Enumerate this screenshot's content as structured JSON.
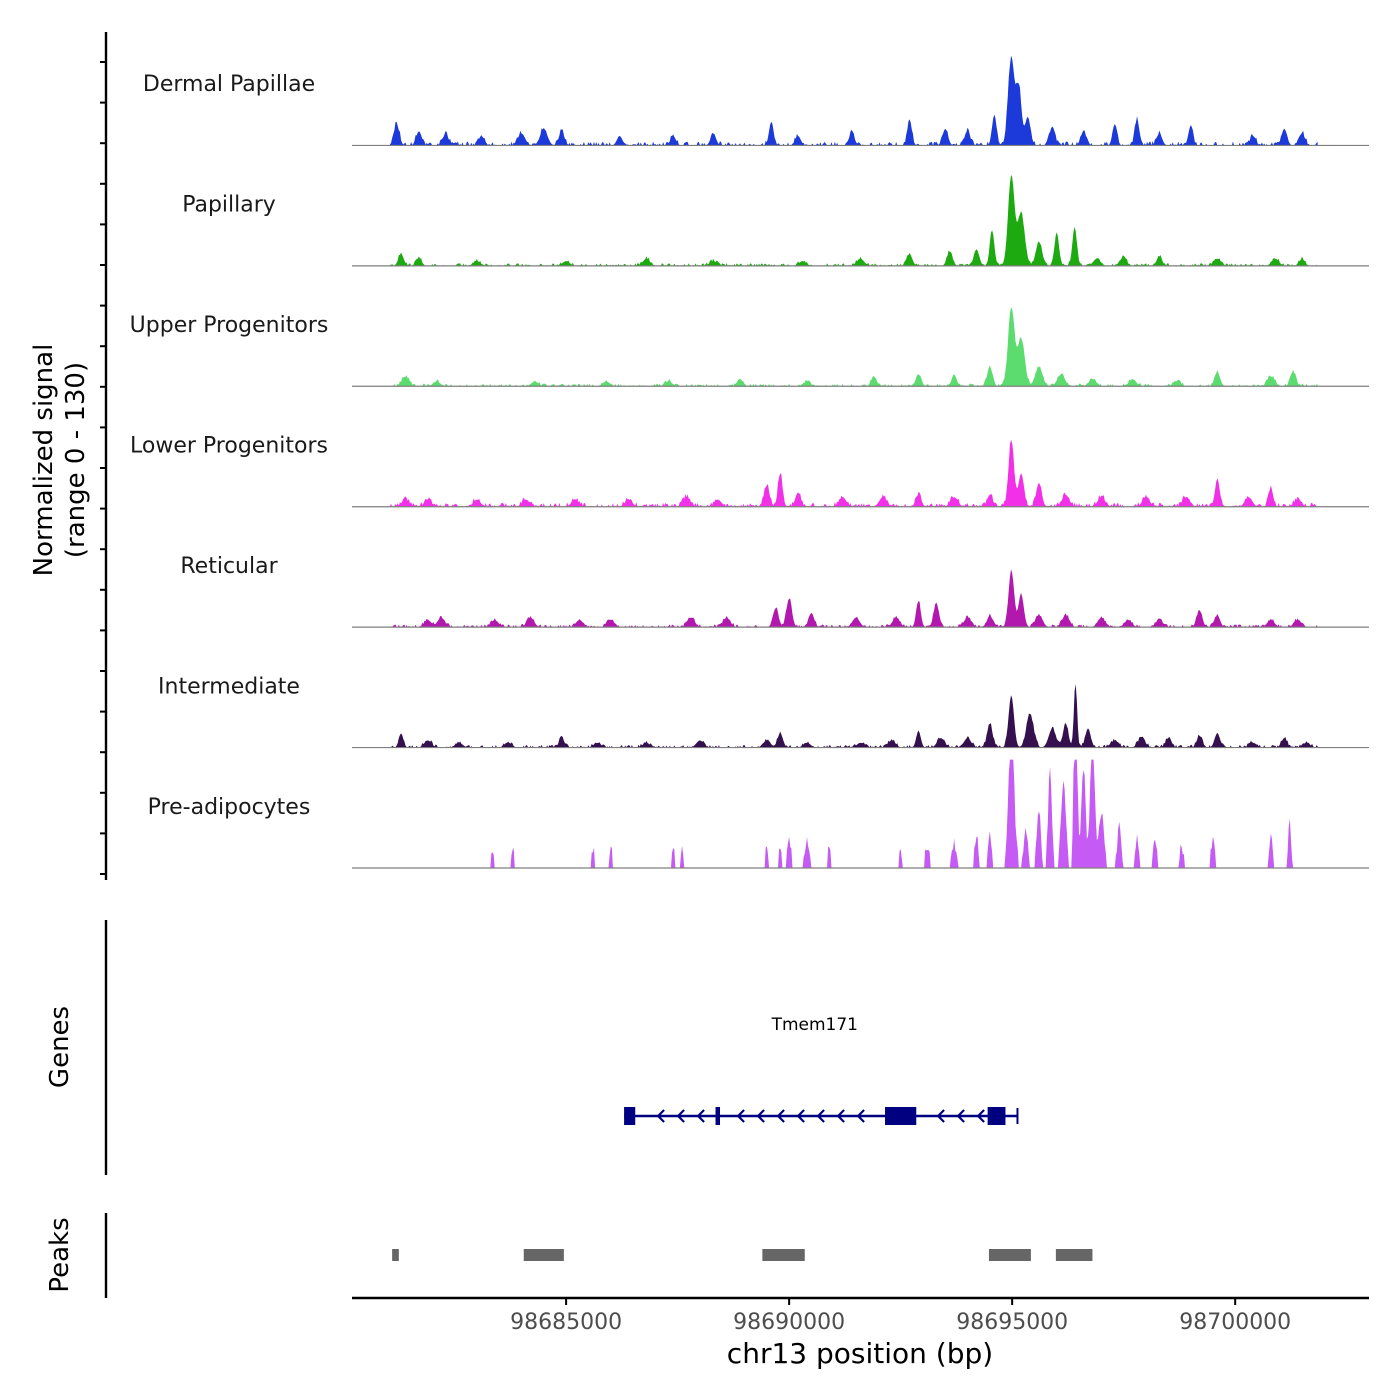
{
  "chart_data": {
    "type": "area",
    "title": "",
    "chromosome": "chr13",
    "xlabel": "chr13 position (bp)",
    "xlim": [
      98680200,
      98703000
    ],
    "xticks": [
      98685000,
      98690000,
      98695000,
      98700000
    ],
    "xtick_labels": [
      "98685000",
      "98690000",
      "98695000",
      "98700000"
    ],
    "signal_axis": {
      "label_line1": "Normalized signal",
      "label_line2": "(range 0 - 130)",
      "range": [
        0,
        130
      ]
    },
    "data_start": 98681050,
    "data_end": 98701850,
    "tracks": [
      {
        "name": "Dermal Papillae",
        "color": "#1b3ad9",
        "baseline_noise": 3,
        "peaks": [
          [
            98681200,
            9,
            60
          ],
          [
            98681700,
            6,
            60
          ],
          [
            98682300,
            5,
            60
          ],
          [
            98683100,
            4,
            60
          ],
          [
            98684000,
            5,
            80
          ],
          [
            98684500,
            7,
            80
          ],
          [
            98684900,
            6,
            60
          ],
          [
            98686200,
            4,
            60
          ],
          [
            98687400,
            4,
            60
          ],
          [
            98688300,
            5,
            60
          ],
          [
            98689600,
            10,
            50
          ],
          [
            98690200,
            4,
            60
          ],
          [
            98691400,
            5,
            60
          ],
          [
            98692700,
            11,
            50
          ],
          [
            98693500,
            7,
            60
          ],
          [
            98694000,
            6,
            60
          ],
          [
            98694600,
            13,
            50
          ],
          [
            98694980,
            37,
            70
          ],
          [
            98695150,
            24,
            60
          ],
          [
            98695350,
            12,
            60
          ],
          [
            98695900,
            8,
            60
          ],
          [
            98696600,
            6,
            60
          ],
          [
            98697300,
            9,
            50
          ],
          [
            98697800,
            11,
            50
          ],
          [
            98698300,
            5,
            60
          ],
          [
            98699000,
            8,
            50
          ],
          [
            98700400,
            4,
            60
          ],
          [
            98701100,
            7,
            60
          ],
          [
            98701500,
            5,
            60
          ]
        ]
      },
      {
        "name": "Papillary",
        "color": "#1caa10",
        "baseline_noise": 2,
        "peaks": [
          [
            98681300,
            5,
            60
          ],
          [
            98681700,
            3,
            60
          ],
          [
            98683000,
            2,
            80
          ],
          [
            98685000,
            2,
            80
          ],
          [
            98686800,
            3,
            80
          ],
          [
            98688300,
            2,
            80
          ],
          [
            98690300,
            2,
            80
          ],
          [
            98691600,
            3,
            80
          ],
          [
            98692700,
            5,
            60
          ],
          [
            98693600,
            6,
            60
          ],
          [
            98694200,
            7,
            60
          ],
          [
            98694550,
            15,
            50
          ],
          [
            98694980,
            38,
            70
          ],
          [
            98695200,
            22,
            80
          ],
          [
            98695600,
            10,
            70
          ],
          [
            98696000,
            14,
            50
          ],
          [
            98696400,
            16,
            50
          ],
          [
            98696900,
            3,
            80
          ],
          [
            98697500,
            4,
            60
          ],
          [
            98698300,
            4,
            60
          ],
          [
            98699600,
            3,
            80
          ],
          [
            98700900,
            3,
            80
          ],
          [
            98701500,
            3,
            60
          ]
        ]
      },
      {
        "name": "Upper Progenitors",
        "color": "#5cdc6e",
        "baseline_noise": 2,
        "peaks": [
          [
            98681400,
            4,
            80
          ],
          [
            98682100,
            2,
            80
          ],
          [
            98684300,
            2,
            80
          ],
          [
            98685900,
            2,
            80
          ],
          [
            98687300,
            2,
            80
          ],
          [
            98688900,
            3,
            60
          ],
          [
            98690400,
            2,
            80
          ],
          [
            98691900,
            4,
            60
          ],
          [
            98692900,
            5,
            60
          ],
          [
            98693700,
            4,
            60
          ],
          [
            98694500,
            8,
            60
          ],
          [
            98694980,
            33,
            70
          ],
          [
            98695200,
            20,
            80
          ],
          [
            98695600,
            8,
            80
          ],
          [
            98696100,
            5,
            80
          ],
          [
            98696800,
            3,
            80
          ],
          [
            98697700,
            3,
            80
          ],
          [
            98698700,
            2,
            80
          ],
          [
            98699600,
            6,
            60
          ],
          [
            98700800,
            4,
            80
          ],
          [
            98701300,
            6,
            60
          ]
        ]
      },
      {
        "name": "Lower Progenitors",
        "color": "#f230e8",
        "baseline_noise": 3,
        "peaks": [
          [
            98681400,
            3,
            80
          ],
          [
            98681900,
            3,
            80
          ],
          [
            98683000,
            3,
            80
          ],
          [
            98684100,
            3,
            80
          ],
          [
            98685200,
            3,
            80
          ],
          [
            98686400,
            3,
            80
          ],
          [
            98687700,
            4,
            80
          ],
          [
            98688400,
            3,
            80
          ],
          [
            98689500,
            9,
            60
          ],
          [
            98689800,
            14,
            50
          ],
          [
            98690200,
            6,
            60
          ],
          [
            98691200,
            4,
            80
          ],
          [
            98692100,
            4,
            80
          ],
          [
            98692900,
            5,
            60
          ],
          [
            98693700,
            4,
            80
          ],
          [
            98694500,
            5,
            60
          ],
          [
            98694980,
            28,
            60
          ],
          [
            98695200,
            14,
            60
          ],
          [
            98695600,
            10,
            60
          ],
          [
            98696200,
            5,
            80
          ],
          [
            98697000,
            4,
            80
          ],
          [
            98698000,
            4,
            80
          ],
          [
            98698900,
            4,
            80
          ],
          [
            98699600,
            12,
            50
          ],
          [
            98700300,
            4,
            80
          ],
          [
            98700800,
            8,
            50
          ],
          [
            98701400,
            3,
            80
          ]
        ]
      },
      {
        "name": "Reticular",
        "color": "#b218ae",
        "baseline_noise": 2,
        "peaks": [
          [
            98681900,
            3,
            80
          ],
          [
            98682200,
            4,
            80
          ],
          [
            98683400,
            3,
            80
          ],
          [
            98684200,
            4,
            80
          ],
          [
            98685300,
            3,
            80
          ],
          [
            98686000,
            3,
            80
          ],
          [
            98687800,
            4,
            80
          ],
          [
            98688600,
            4,
            80
          ],
          [
            98689700,
            8,
            60
          ],
          [
            98690000,
            12,
            60
          ],
          [
            98690500,
            6,
            60
          ],
          [
            98691500,
            4,
            80
          ],
          [
            98692400,
            4,
            80
          ],
          [
            98692900,
            11,
            50
          ],
          [
            98693300,
            10,
            60
          ],
          [
            98694000,
            4,
            80
          ],
          [
            98694500,
            5,
            60
          ],
          [
            98694980,
            24,
            60
          ],
          [
            98695200,
            14,
            60
          ],
          [
            98695600,
            5,
            80
          ],
          [
            98696200,
            5,
            80
          ],
          [
            98697000,
            4,
            80
          ],
          [
            98697600,
            3,
            80
          ],
          [
            98698300,
            3,
            80
          ],
          [
            98699200,
            7,
            60
          ],
          [
            98699600,
            5,
            60
          ],
          [
            98700800,
            3,
            80
          ],
          [
            98701400,
            3,
            80
          ]
        ]
      },
      {
        "name": "Intermediate",
        "color": "#35104f",
        "baseline_noise": 2,
        "peaks": [
          [
            98681300,
            6,
            50
          ],
          [
            98681900,
            3,
            80
          ],
          [
            98682600,
            2,
            80
          ],
          [
            98683700,
            2,
            80
          ],
          [
            98684900,
            4,
            60
          ],
          [
            98685700,
            2,
            80
          ],
          [
            98686800,
            2,
            80
          ],
          [
            98688000,
            3,
            80
          ],
          [
            98689500,
            3,
            80
          ],
          [
            98689800,
            6,
            60
          ],
          [
            98690400,
            2,
            80
          ],
          [
            98691600,
            2,
            80
          ],
          [
            98692300,
            3,
            80
          ],
          [
            98692900,
            7,
            50
          ],
          [
            98693400,
            4,
            80
          ],
          [
            98694000,
            4,
            80
          ],
          [
            98694500,
            10,
            60
          ],
          [
            98694980,
            22,
            60
          ],
          [
            98695400,
            14,
            80
          ],
          [
            98695900,
            8,
            80
          ],
          [
            98696200,
            10,
            60
          ],
          [
            98696420,
            27,
            35
          ],
          [
            98696700,
            8,
            60
          ],
          [
            98697300,
            3,
            80
          ],
          [
            98697900,
            4,
            80
          ],
          [
            98698500,
            4,
            60
          ],
          [
            98699200,
            5,
            60
          ],
          [
            98699600,
            6,
            60
          ],
          [
            98700400,
            2,
            80
          ],
          [
            98701100,
            4,
            60
          ],
          [
            98701600,
            2,
            80
          ]
        ]
      },
      {
        "name": "Pre-adipocytes",
        "color": "#c65af5",
        "baseline_noise": 5,
        "peaks": [
          [
            98683350,
            5,
            35
          ],
          [
            98683800,
            5,
            35
          ],
          [
            98685600,
            5,
            35
          ],
          [
            98686000,
            5,
            35
          ],
          [
            98687400,
            5,
            35
          ],
          [
            98687600,
            5,
            35
          ],
          [
            98689500,
            5,
            35
          ],
          [
            98689800,
            5,
            35
          ],
          [
            98690000,
            9,
            45
          ],
          [
            98690400,
            9,
            50
          ],
          [
            98690900,
            5,
            40
          ],
          [
            98692500,
            5,
            35
          ],
          [
            98693100,
            7,
            50
          ],
          [
            98693700,
            8,
            50
          ],
          [
            98694200,
            10,
            40
          ],
          [
            98694500,
            11,
            40
          ],
          [
            98694980,
            60,
            60
          ],
          [
            98695300,
            15,
            40
          ],
          [
            98695600,
            22,
            40
          ],
          [
            98695850,
            40,
            40
          ],
          [
            98696150,
            35,
            50
          ],
          [
            98696420,
            90,
            35
          ],
          [
            98696600,
            40,
            45
          ],
          [
            98696800,
            64,
            45
          ],
          [
            98697000,
            22,
            50
          ],
          [
            98697400,
            15,
            40
          ],
          [
            98697800,
            11,
            40
          ],
          [
            98698200,
            11,
            40
          ],
          [
            98698800,
            6,
            40
          ],
          [
            98699500,
            10,
            40
          ],
          [
            98700800,
            10,
            40
          ],
          [
            98701220,
            18,
            30
          ]
        ]
      }
    ],
    "genes": [
      {
        "name": "Tmem171",
        "start": 98686300,
        "end": 98694850,
        "strand": "-",
        "exons": [
          [
            98686300,
            98686550
          ],
          [
            98688350,
            98688450
          ],
          [
            98692150,
            98692850
          ],
          [
            98694450,
            98694850
          ]
        ]
      }
    ],
    "genes_label": "Genes",
    "peaks_label": "Peaks",
    "peak_regions": [
      [
        98681100,
        98681250
      ],
      [
        98684050,
        98684950
      ],
      [
        98689400,
        98690350
      ],
      [
        98694480,
        98695420
      ],
      [
        98695980,
        98696800
      ]
    ]
  }
}
